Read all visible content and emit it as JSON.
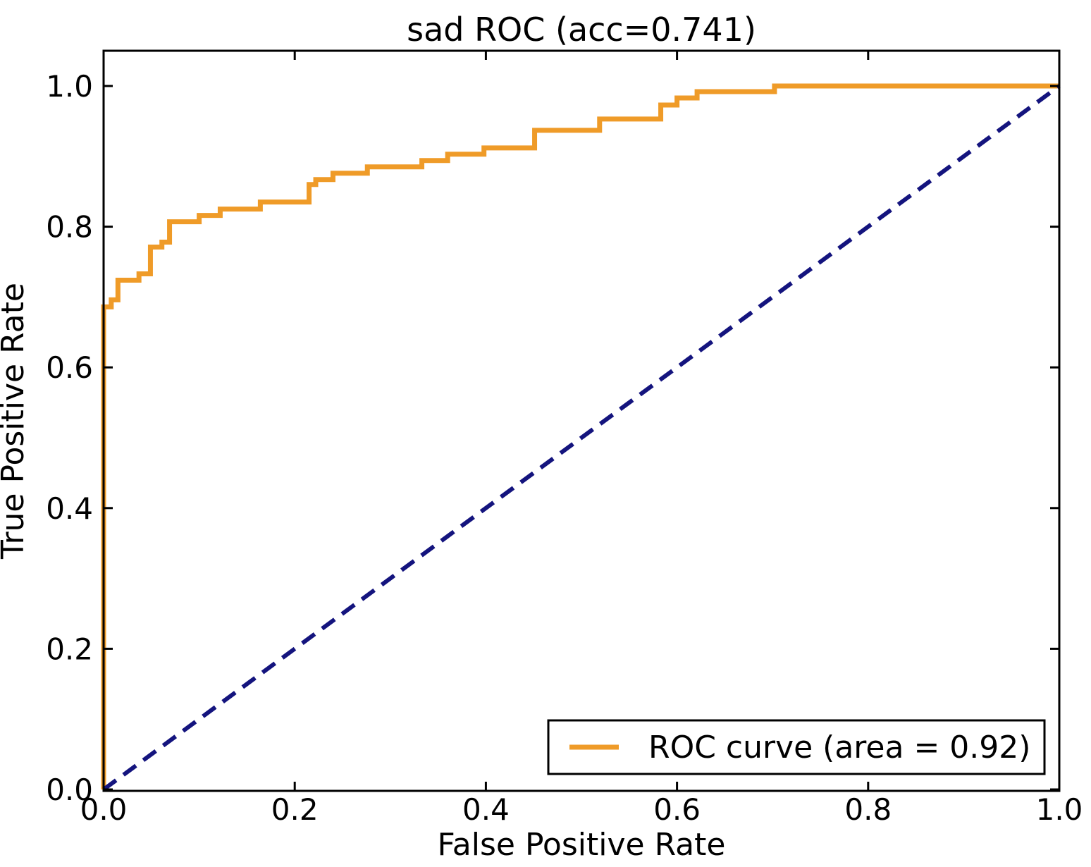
{
  "figure": {
    "title": "sad ROC (acc=0.741)",
    "x_axis_label": "False Positive Rate",
    "y_axis_label": "True Positive Rate"
  },
  "legend": {
    "position": "lower right",
    "entries": [
      {
        "label": "ROC curve (area = 0.92)",
        "color": "#ef9b28",
        "line_style": "solid"
      }
    ]
  },
  "colors": {
    "roc_curve": "#ef9b28",
    "chance_line": "#14147e",
    "axis": "#000000",
    "background": "#ffffff",
    "text": "#000000"
  },
  "chart_data": {
    "type": "line",
    "title": "sad ROC (acc=0.741)",
    "xlabel": "False Positive Rate",
    "ylabel": "True Positive Rate",
    "xlim": [
      0.0,
      1.0
    ],
    "ylim": [
      0.0,
      1.05
    ],
    "grid": false,
    "legend_position": "lower right",
    "x_tick_values": [
      0.0,
      0.2,
      0.4,
      0.6,
      0.8,
      1.0
    ],
    "x_tick_labels": [
      "0.0",
      "0.2",
      "0.4",
      "0.6",
      "0.8",
      "1.0"
    ],
    "y_tick_values": [
      0.0,
      0.2,
      0.4,
      0.6,
      0.8,
      1.0
    ],
    "y_tick_labels": [
      "0.0",
      "0.2",
      "0.4",
      "0.6",
      "0.8",
      "1.0"
    ],
    "metrics": {
      "accuracy": 0.741,
      "auc": 0.92
    },
    "series": [
      {
        "name": "ROC curve (area = 0.92)",
        "style": "step",
        "color": "#ef9b28",
        "line_width": 7,
        "steps": [
          [
            0.0,
            0.686
          ],
          [
            0.008,
            0.696
          ],
          [
            0.015,
            0.724
          ],
          [
            0.037,
            0.733
          ],
          [
            0.049,
            0.771
          ],
          [
            0.061,
            0.778
          ],
          [
            0.069,
            0.807
          ],
          [
            0.1,
            0.816
          ],
          [
            0.122,
            0.825
          ],
          [
            0.164,
            0.835
          ],
          [
            0.215,
            0.86
          ],
          [
            0.222,
            0.867
          ],
          [
            0.24,
            0.876
          ],
          [
            0.276,
            0.885
          ],
          [
            0.333,
            0.894
          ],
          [
            0.36,
            0.903
          ],
          [
            0.398,
            0.912
          ],
          [
            0.451,
            0.937
          ],
          [
            0.519,
            0.953
          ],
          [
            0.583,
            0.973
          ],
          [
            0.6,
            0.983
          ],
          [
            0.621,
            0.992
          ],
          [
            0.702,
            1.0
          ],
          [
            1.0,
            1.0
          ]
        ]
      },
      {
        "name": "chance diagonal",
        "style": "dashed",
        "color": "#14147e",
        "line_width": 6,
        "points": [
          [
            0.0,
            0.0
          ],
          [
            1.0,
            1.0
          ]
        ]
      }
    ]
  }
}
